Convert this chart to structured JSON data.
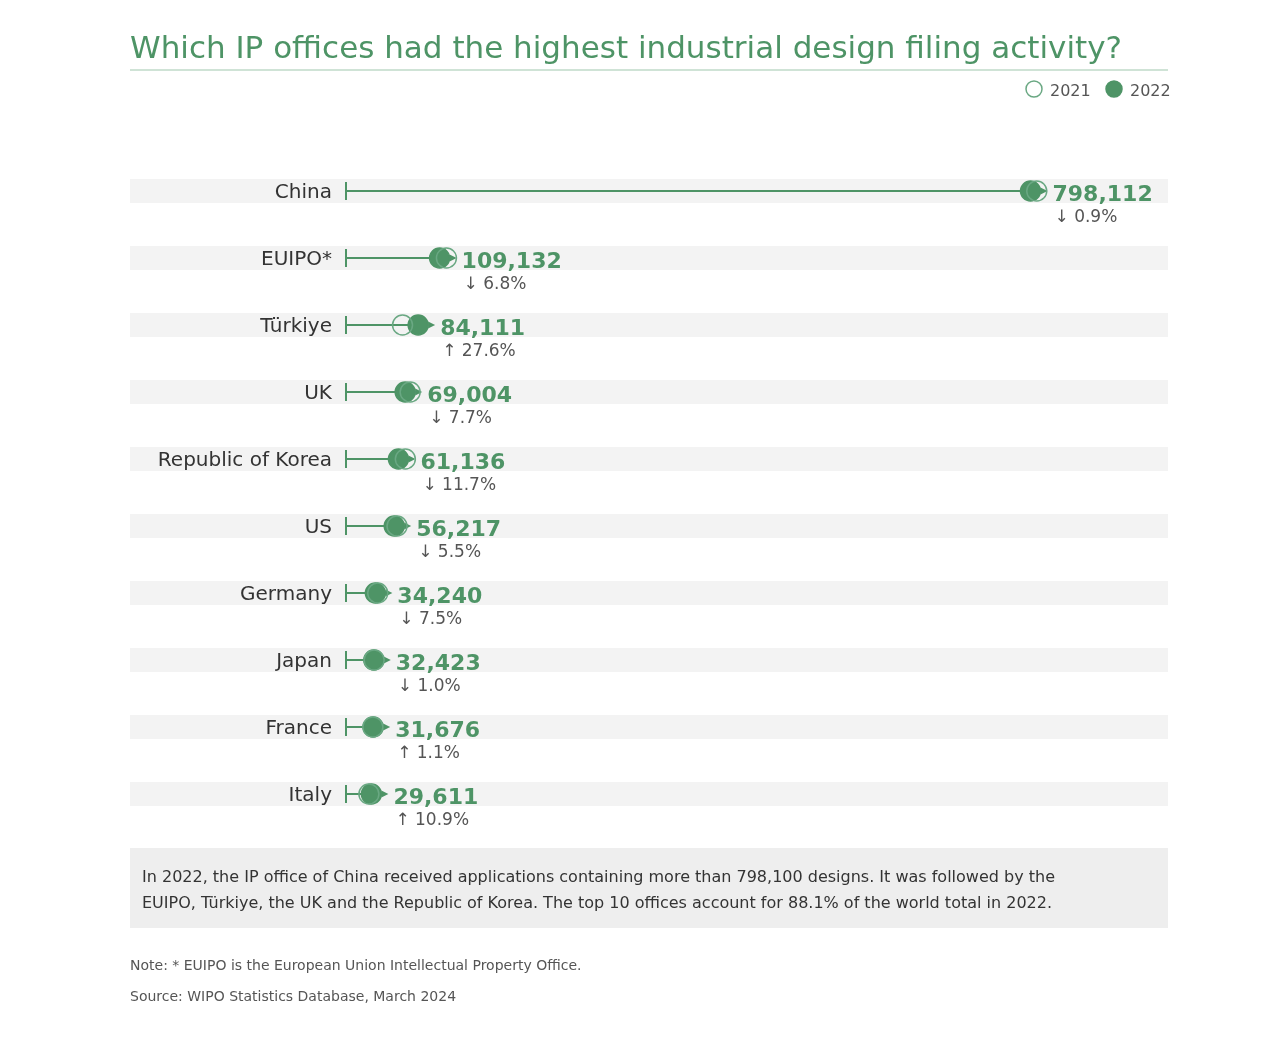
{
  "chart_data": {
    "type": "lollipop",
    "orientation": "horizontal",
    "title": "Which IP offices had the highest industrial design filing activity?",
    "categories": [
      "China",
      "EUIPO*",
      "Türkiye",
      "UK",
      "Republic of Korea",
      "US",
      "Germany",
      "Japan",
      "France",
      "Italy"
    ],
    "tick_labels": "y",
    "legend": "top right",
    "grid": false,
    "series": [
      {
        "name": "2021",
        "type": "scatter",
        "marker": "circle",
        "color": "#6aa883",
        "values": [
          805400,
          117100,
          65900,
          74800,
          69200,
          59500,
          37000,
          32800,
          31300,
          26700
        ]
      },
      {
        "name": "2022",
        "marker": "circle",
        "color": "#4e9466",
        "values": [
          798112,
          109132,
          84111,
          69004,
          61136,
          56217,
          34240,
          32423,
          31676,
          29611
        ],
        "value_labels": [
          "798,112",
          "109,132",
          "84,111",
          "69,004",
          "61,136",
          "56,217",
          "34,240",
          "32,423",
          "31,676",
          "29,611"
        ]
      }
    ],
    "annotations": [
      {
        "text": "↓ 0.9%",
        "x": 798112,
        "y": "China"
      },
      {
        "text": "↓ 6.8%",
        "x": 109132,
        "y": "EUIPO*"
      },
      {
        "text": "↑ 27.6%",
        "x": 84111,
        "y": "Türkiye"
      },
      {
        "text": "↓ 7.7%",
        "x": 69004,
        "y": "UK"
      },
      {
        "text": "↓ 11.7%",
        "x": 61136,
        "y": "Republic of Korea"
      },
      {
        "text": "↓ 5.5%",
        "x": 56217,
        "y": "US"
      },
      {
        "text": "↓ 7.5%",
        "x": 34240,
        "y": "Germany"
      },
      {
        "text": "↓ 1.0%",
        "x": 32423,
        "y": "Japan"
      },
      {
        "text": "↑ 1.1%",
        "x": 31676,
        "y": "France"
      },
      {
        "text": "↑ 10.9%",
        "x": 29611,
        "y": "Italy"
      },
      "In 2022, the IP office of China received applications containing more than 798,100 designs. It was followed by the EUIPO, Türkiye, the UK and the Republic of Korea. The top 10 offices account for 88.1% of the world total in 2022.",
      "Note: * EUIPO is the European Union Intellectual Property Office.",
      "Source: WIPO Statistics Database, March 2024"
    ]
  }
}
